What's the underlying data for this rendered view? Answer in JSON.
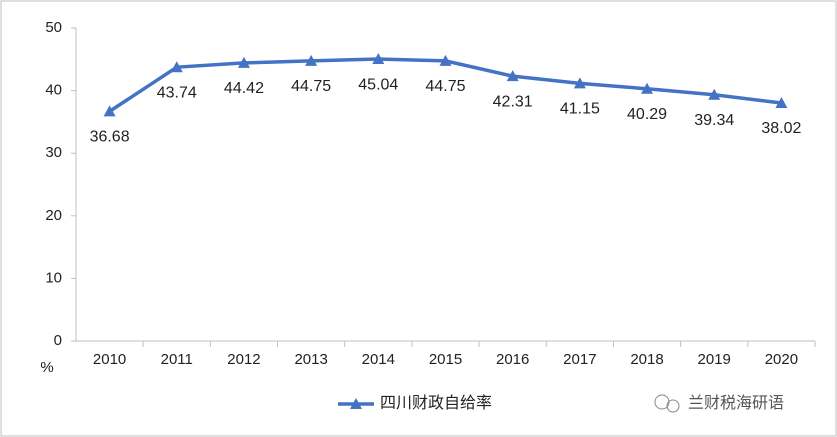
{
  "chart_data": {
    "type": "line",
    "categories": [
      "2010",
      "2011",
      "2012",
      "2013",
      "2014",
      "2015",
      "2016",
      "2017",
      "2018",
      "2019",
      "2020"
    ],
    "series": [
      {
        "name": "四川财政自给率",
        "color": "#4472c4",
        "values": [
          36.68,
          43.74,
          44.42,
          44.75,
          45.04,
          44.75,
          42.31,
          41.15,
          40.29,
          39.34,
          38.02
        ]
      }
    ],
    "ylabel": "%",
    "ylim": [
      0,
      50
    ],
    "yticks": [
      0,
      10,
      20,
      30,
      40,
      50
    ],
    "legend": "bottom",
    "watermark": "兰财税海研语"
  }
}
